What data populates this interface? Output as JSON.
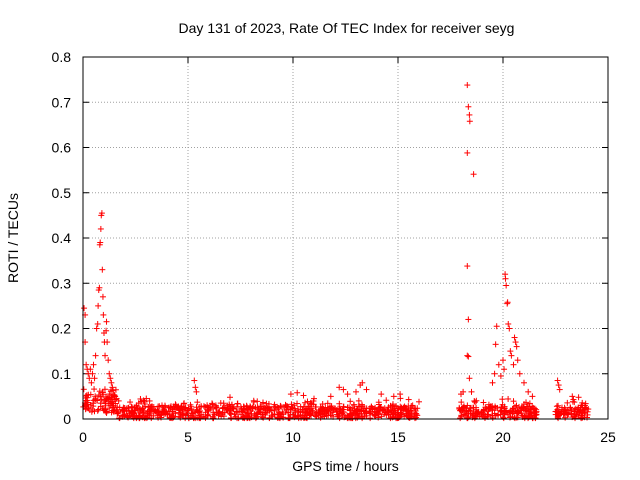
{
  "chart_data": {
    "type": "scatter",
    "title": "Day 131 of 2023, Rate Of TEC Index for receiver seyg",
    "xlabel": "GPS time / hours",
    "ylabel": "ROTI / TECUs",
    "xlim": [
      0,
      25
    ],
    "ylim": [
      0,
      0.8
    ],
    "xticks": [
      0,
      5,
      10,
      15,
      20,
      25
    ],
    "yticks": [
      0,
      0.1,
      0.2,
      0.3,
      0.4,
      0.5,
      0.6,
      0.7,
      0.8
    ],
    "grid": true,
    "marker": "+",
    "color": "#ff0000",
    "series": [
      {
        "name": "ROTI",
        "points": [
          [
            0.05,
            0.245
          ],
          [
            0.1,
            0.23
          ],
          [
            0.1,
            0.17
          ],
          [
            0.15,
            0.12
          ],
          [
            0.2,
            0.11
          ],
          [
            0.25,
            0.1
          ],
          [
            0.3,
            0.09
          ],
          [
            0.35,
            0.11
          ],
          [
            0.4,
            0.08
          ],
          [
            0.45,
            0.1
          ],
          [
            0.5,
            0.12
          ],
          [
            0.55,
            0.09
          ],
          [
            0.6,
            0.14
          ],
          [
            0.65,
            0.2
          ],
          [
            0.7,
            0.21
          ],
          [
            0.72,
            0.25
          ],
          [
            0.75,
            0.285
          ],
          [
            0.78,
            0.29
          ],
          [
            0.8,
            0.385
          ],
          [
            0.82,
            0.39
          ],
          [
            0.85,
            0.42
          ],
          [
            0.87,
            0.45
          ],
          [
            0.9,
            0.455
          ],
          [
            0.92,
            0.33
          ],
          [
            0.95,
            0.27
          ],
          [
            0.97,
            0.23
          ],
          [
            1.0,
            0.19
          ],
          [
            1.02,
            0.17
          ],
          [
            1.05,
            0.14
          ],
          [
            1.1,
            0.195
          ],
          [
            1.12,
            0.215
          ],
          [
            1.15,
            0.17
          ],
          [
            1.2,
            0.13
          ],
          [
            1.25,
            0.1
          ],
          [
            1.3,
            0.09
          ],
          [
            1.35,
            0.08
          ],
          [
            1.4,
            0.07
          ],
          [
            1.5,
            0.05
          ],
          [
            1.6,
            0.045
          ],
          [
            1.7,
            0.04
          ],
          [
            5.3,
            0.085
          ],
          [
            5.35,
            0.07
          ],
          [
            5.4,
            0.06
          ],
          [
            7.0,
            0.048
          ],
          [
            9.9,
            0.055
          ],
          [
            10.2,
            0.058
          ],
          [
            10.5,
            0.052
          ],
          [
            11.0,
            0.045
          ],
          [
            11.8,
            0.05
          ],
          [
            12.2,
            0.07
          ],
          [
            12.4,
            0.065
          ],
          [
            12.6,
            0.055
          ],
          [
            13.0,
            0.06
          ],
          [
            13.2,
            0.075
          ],
          [
            13.3,
            0.08
          ],
          [
            13.5,
            0.065
          ],
          [
            14.2,
            0.055
          ],
          [
            14.8,
            0.05
          ],
          [
            15.1,
            0.055
          ],
          [
            16.0,
            0.038
          ],
          [
            18.0,
            0.055
          ],
          [
            18.1,
            0.06
          ],
          [
            18.3,
            0.738
          ],
          [
            18.35,
            0.69
          ],
          [
            18.4,
            0.672
          ],
          [
            18.42,
            0.658
          ],
          [
            18.3,
            0.588
          ],
          [
            18.6,
            0.541
          ],
          [
            18.3,
            0.338
          ],
          [
            18.35,
            0.22
          ],
          [
            18.3,
            0.14
          ],
          [
            18.35,
            0.138
          ],
          [
            18.4,
            0.09
          ],
          [
            18.5,
            0.06
          ],
          [
            19.5,
            0.08
          ],
          [
            19.6,
            0.1
          ],
          [
            19.7,
            0.205
          ],
          [
            19.65,
            0.165
          ],
          [
            19.8,
            0.12
          ],
          [
            19.9,
            0.095
          ],
          [
            20.0,
            0.13
          ],
          [
            20.05,
            0.11
          ],
          [
            20.1,
            0.32
          ],
          [
            20.12,
            0.31
          ],
          [
            20.15,
            0.295
          ],
          [
            20.2,
            0.255
          ],
          [
            20.22,
            0.258
          ],
          [
            20.25,
            0.21
          ],
          [
            20.3,
            0.2
          ],
          [
            20.35,
            0.15
          ],
          [
            20.4,
            0.14
          ],
          [
            20.5,
            0.12
          ],
          [
            20.55,
            0.18
          ],
          [
            20.6,
            0.17
          ],
          [
            20.65,
            0.16
          ],
          [
            20.7,
            0.13
          ],
          [
            20.8,
            0.1
          ],
          [
            21.0,
            0.08
          ],
          [
            21.2,
            0.06
          ],
          [
            21.4,
            0.05
          ],
          [
            22.6,
            0.085
          ],
          [
            22.65,
            0.075
          ],
          [
            22.7,
            0.065
          ],
          [
            23.3,
            0.05
          ],
          [
            23.6,
            0.048
          ],
          [
            23.9,
            0.03
          ]
        ]
      }
    ]
  }
}
